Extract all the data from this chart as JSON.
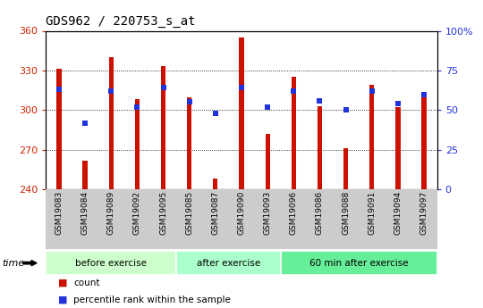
{
  "title": "GDS962 / 220753_s_at",
  "categories": [
    "GSM19083",
    "GSM19084",
    "GSM19089",
    "GSM19092",
    "GSM19095",
    "GSM19085",
    "GSM19087",
    "GSM19090",
    "GSM19093",
    "GSM19096",
    "GSM19086",
    "GSM19088",
    "GSM19091",
    "GSM19094",
    "GSM19097"
  ],
  "bar_values": [
    331,
    262,
    340,
    308,
    333,
    310,
    248,
    355,
    282,
    325,
    303,
    271,
    319,
    302,
    310
  ],
  "blue_pcts": [
    63,
    42,
    62,
    52,
    64,
    55,
    48,
    64,
    52,
    62,
    56,
    50,
    62,
    54,
    60
  ],
  "ymin": 240,
  "ymax": 360,
  "yticks_left": [
    240,
    270,
    300,
    330,
    360
  ],
  "yticks_right": [
    0,
    25,
    50,
    75,
    100
  ],
  "right_ylabels": [
    "0",
    "25",
    "50",
    "75",
    "100%"
  ],
  "group_labels": [
    "before exercise",
    "after exercise",
    "60 min after exercise"
  ],
  "group_boundaries": [
    0,
    5,
    9,
    15
  ],
  "group_colors": [
    "#ccffcc",
    "#aaffcc",
    "#66ee99"
  ],
  "bar_color": "#cc1100",
  "blue_color": "#2233dd",
  "red_tick_color": "#cc2200",
  "blue_tick_color": "#2233dd",
  "legend_count_label": "count",
  "legend_pct_label": "percentile rank within the sample"
}
